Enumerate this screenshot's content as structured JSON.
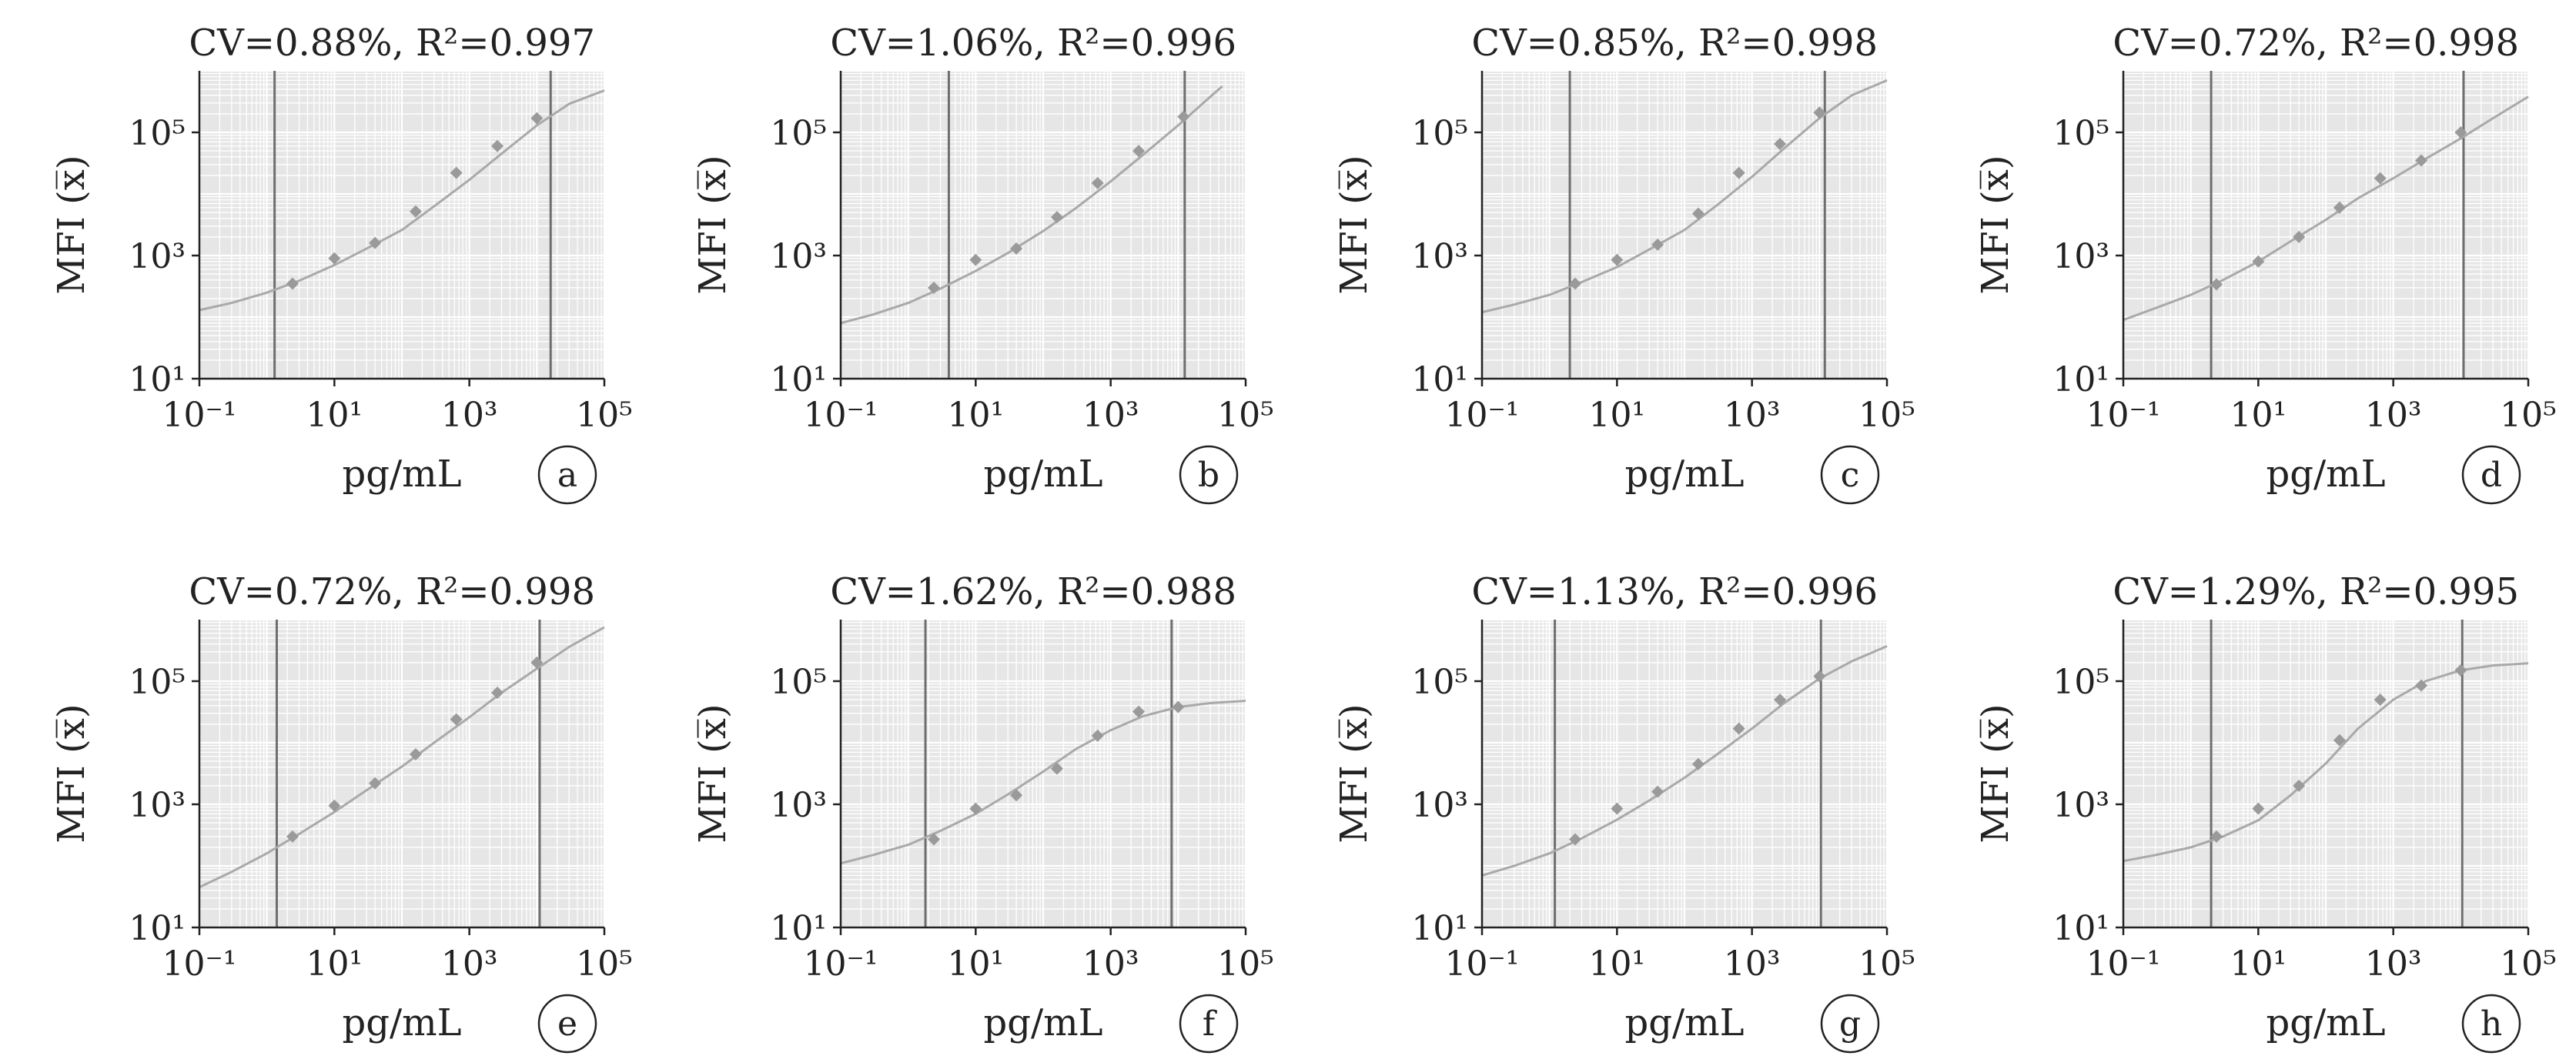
{
  "figure": {
    "x_label": "pg/mL",
    "y_label": "MFI (x̅)",
    "x_ticks": [
      "10⁻¹",
      "10¹",
      "10³",
      "10⁵"
    ],
    "y_ticks": [
      "10¹",
      "10³",
      "10⁵"
    ],
    "colors": {
      "panel_bg": "#e6e6e6",
      "grid": "#ffffff",
      "curve": "#a9a9a9",
      "marker": "#9a9a9a",
      "lod_line": "#6e6e6e",
      "text": "#222222"
    }
  },
  "chart_data": [
    {
      "type": "scatter",
      "panel": "a",
      "title": "CV=0.88%, R²=0.997",
      "cv": 0.88,
      "r2": 0.997,
      "xscale": "log",
      "yscale": "log",
      "xlim": [
        0.1,
        100000
      ],
      "ylim": [
        10,
        1000000
      ],
      "xlabel": "pg/mL",
      "ylabel": "MFI (x̅)",
      "grid": true,
      "points": [
        [
          2.4,
          350
        ],
        [
          10,
          900
        ],
        [
          40,
          1600
        ],
        [
          160,
          5200
        ],
        [
          640,
          22000
        ],
        [
          2600,
          60000
        ],
        [
          10000,
          170000
        ]
      ],
      "fit": [
        [
          0.1,
          130
        ],
        [
          0.3,
          170
        ],
        [
          1,
          250
        ],
        [
          3,
          390
        ],
        [
          10,
          700
        ],
        [
          30,
          1300
        ],
        [
          100,
          2600
        ],
        [
          300,
          6300
        ],
        [
          1000,
          17000
        ],
        [
          3000,
          45000
        ],
        [
          10000,
          130000
        ],
        [
          30000,
          290000
        ],
        [
          100000,
          480000
        ]
      ],
      "lod_lines": [
        1.3,
        16000
      ]
    },
    {
      "type": "scatter",
      "panel": "b",
      "title": "CV=1.06%, R²=0.996",
      "cv": 1.06,
      "r2": 0.996,
      "xscale": "log",
      "yscale": "log",
      "xlim": [
        0.1,
        100000
      ],
      "ylim": [
        10,
        1000000
      ],
      "xlabel": "pg/mL",
      "ylabel": "MFI (x̅)",
      "grid": true,
      "points": [
        [
          2.4,
          300
        ],
        [
          10,
          850
        ],
        [
          40,
          1300
        ],
        [
          160,
          4200
        ],
        [
          640,
          15000
        ],
        [
          2600,
          50000
        ],
        [
          12000,
          180000
        ]
      ],
      "fit": [
        [
          0.1,
          80
        ],
        [
          0.3,
          110
        ],
        [
          1,
          170
        ],
        [
          3,
          290
        ],
        [
          10,
          560
        ],
        [
          30,
          1100
        ],
        [
          100,
          2500
        ],
        [
          300,
          5800
        ],
        [
          1000,
          16000
        ],
        [
          3000,
          43000
        ],
        [
          10000,
          130000
        ],
        [
          30000,
          380000
        ],
        [
          45000,
          560000
        ]
      ],
      "lod_lines": [
        4,
        12500
      ]
    },
    {
      "type": "scatter",
      "panel": "c",
      "title": "CV=0.85%, R²=0.998",
      "cv": 0.85,
      "r2": 0.998,
      "xscale": "log",
      "yscale": "log",
      "xlim": [
        0.1,
        100000
      ],
      "ylim": [
        10,
        1000000
      ],
      "xlabel": "pg/mL",
      "ylabel": "MFI (x̅)",
      "grid": true,
      "points": [
        [
          2.4,
          350
        ],
        [
          10,
          850
        ],
        [
          40,
          1500
        ],
        [
          160,
          4800
        ],
        [
          640,
          22000
        ],
        [
          2600,
          65000
        ],
        [
          10000,
          210000
        ]
      ],
      "fit": [
        [
          0.1,
          120
        ],
        [
          0.3,
          160
        ],
        [
          1,
          230
        ],
        [
          3,
          370
        ],
        [
          10,
          650
        ],
        [
          30,
          1250
        ],
        [
          100,
          2600
        ],
        [
          300,
          6500
        ],
        [
          1000,
          19000
        ],
        [
          3000,
          55000
        ],
        [
          10000,
          170000
        ],
        [
          30000,
          400000
        ],
        [
          100000,
          700000
        ]
      ],
      "lod_lines": [
        2,
        12000
      ]
    },
    {
      "type": "scatter",
      "panel": "d",
      "title": "CV=0.72%, R²=0.998",
      "cv": 0.72,
      "r2": 0.998,
      "xscale": "log",
      "yscale": "log",
      "xlim": [
        0.1,
        100000
      ],
      "ylim": [
        10,
        1000000
      ],
      "xlabel": "pg/mL",
      "ylabel": "MFI (x̅)",
      "grid": true,
      "points": [
        [
          2.4,
          340
        ],
        [
          10,
          800
        ],
        [
          40,
          2000
        ],
        [
          160,
          6000
        ],
        [
          640,
          18000
        ],
        [
          2600,
          35000
        ],
        [
          10000,
          100000
        ]
      ],
      "fit": [
        [
          0.1,
          90
        ],
        [
          0.3,
          140
        ],
        [
          1,
          230
        ],
        [
          3,
          400
        ],
        [
          10,
          800
        ],
        [
          30,
          1700
        ],
        [
          100,
          3800
        ],
        [
          300,
          8500
        ],
        [
          1000,
          18000
        ],
        [
          3000,
          37000
        ],
        [
          10000,
          80000
        ],
        [
          30000,
          170000
        ],
        [
          100000,
          380000
        ]
      ],
      "lod_lines": [
        2,
        11000
      ]
    },
    {
      "type": "scatter",
      "panel": "e",
      "title": "CV=0.72%, R²=0.998",
      "cv": 0.72,
      "r2": 0.998,
      "xscale": "log",
      "yscale": "log",
      "xlim": [
        0.1,
        100000
      ],
      "ylim": [
        10,
        1000000
      ],
      "xlabel": "pg/mL",
      "ylabel": "MFI (x̅)",
      "grid": true,
      "points": [
        [
          2.4,
          300
        ],
        [
          10,
          950
        ],
        [
          40,
          2200
        ],
        [
          160,
          6500
        ],
        [
          640,
          24000
        ],
        [
          2600,
          65000
        ],
        [
          10000,
          200000
        ]
      ],
      "fit": [
        [
          0.1,
          45
        ],
        [
          0.3,
          80
        ],
        [
          1,
          160
        ],
        [
          3,
          330
        ],
        [
          10,
          750
        ],
        [
          30,
          1700
        ],
        [
          100,
          4100
        ],
        [
          300,
          10000
        ],
        [
          1000,
          26000
        ],
        [
          3000,
          65000
        ],
        [
          10000,
          160000
        ],
        [
          30000,
          360000
        ],
        [
          100000,
          750000
        ]
      ],
      "lod_lines": [
        1.4,
        11000
      ]
    },
    {
      "type": "scatter",
      "panel": "f",
      "title": "CV=1.62%, R²=0.988",
      "cv": 1.62,
      "r2": 0.988,
      "xscale": "log",
      "yscale": "log",
      "xlim": [
        0.1,
        100000
      ],
      "ylim": [
        10,
        1000000
      ],
      "xlabel": "pg/mL",
      "ylabel": "MFI (x̅)",
      "grid": true,
      "points": [
        [
          2.4,
          270
        ],
        [
          10,
          850
        ],
        [
          40,
          1400
        ],
        [
          160,
          3800
        ],
        [
          640,
          13000
        ],
        [
          2600,
          32000
        ],
        [
          10000,
          38000
        ]
      ],
      "fit": [
        [
          0.1,
          110
        ],
        [
          0.3,
          150
        ],
        [
          1,
          220
        ],
        [
          3,
          370
        ],
        [
          10,
          700
        ],
        [
          30,
          1450
        ],
        [
          100,
          3400
        ],
        [
          300,
          7800
        ],
        [
          1000,
          16000
        ],
        [
          3000,
          27000
        ],
        [
          10000,
          38000
        ],
        [
          30000,
          44000
        ],
        [
          100000,
          48000
        ]
      ],
      "lod_lines": [
        1.8,
        8000
      ]
    },
    {
      "type": "scatter",
      "panel": "g",
      "title": "CV=1.13%, R²=0.996",
      "cv": 1.13,
      "r2": 0.996,
      "xscale": "log",
      "yscale": "log",
      "xlim": [
        0.1,
        100000
      ],
      "ylim": [
        10,
        1000000
      ],
      "xlabel": "pg/mL",
      "ylabel": "MFI (x̅)",
      "grid": true,
      "points": [
        [
          2.4,
          270
        ],
        [
          10,
          850
        ],
        [
          40,
          1600
        ],
        [
          160,
          4500
        ],
        [
          640,
          17000
        ],
        [
          2600,
          50000
        ],
        [
          10000,
          120000
        ]
      ],
      "fit": [
        [
          0.1,
          70
        ],
        [
          0.3,
          100
        ],
        [
          1,
          160
        ],
        [
          3,
          280
        ],
        [
          10,
          560
        ],
        [
          30,
          1150
        ],
        [
          100,
          2700
        ],
        [
          300,
          6400
        ],
        [
          1000,
          17000
        ],
        [
          3000,
          44000
        ],
        [
          10000,
          110000
        ],
        [
          30000,
          210000
        ],
        [
          100000,
          370000
        ]
      ],
      "lod_lines": [
        1.2,
        10500
      ]
    },
    {
      "type": "scatter",
      "panel": "h",
      "title": "CV=1.29%, R²=0.995",
      "cv": 1.29,
      "r2": 0.995,
      "xscale": "log",
      "yscale": "log",
      "xlim": [
        0.1,
        100000
      ],
      "ylim": [
        10,
        1000000
      ],
      "xlabel": "pg/mL",
      "ylabel": "MFI (x̅)",
      "grid": true,
      "points": [
        [
          2.4,
          300
        ],
        [
          10,
          850
        ],
        [
          40,
          2000
        ],
        [
          160,
          11000
        ],
        [
          640,
          50000
        ],
        [
          2600,
          85000
        ],
        [
          10000,
          150000
        ]
      ],
      "fit": [
        [
          0.1,
          120
        ],
        [
          0.3,
          150
        ],
        [
          1,
          200
        ],
        [
          3,
          300
        ],
        [
          10,
          550
        ],
        [
          30,
          1400
        ],
        [
          100,
          4600
        ],
        [
          300,
          17000
        ],
        [
          1000,
          50000
        ],
        [
          3000,
          100000
        ],
        [
          10000,
          150000
        ],
        [
          30000,
          180000
        ],
        [
          100000,
          195000
        ]
      ],
      "lod_lines": [
        2,
        10500
      ]
    }
  ]
}
